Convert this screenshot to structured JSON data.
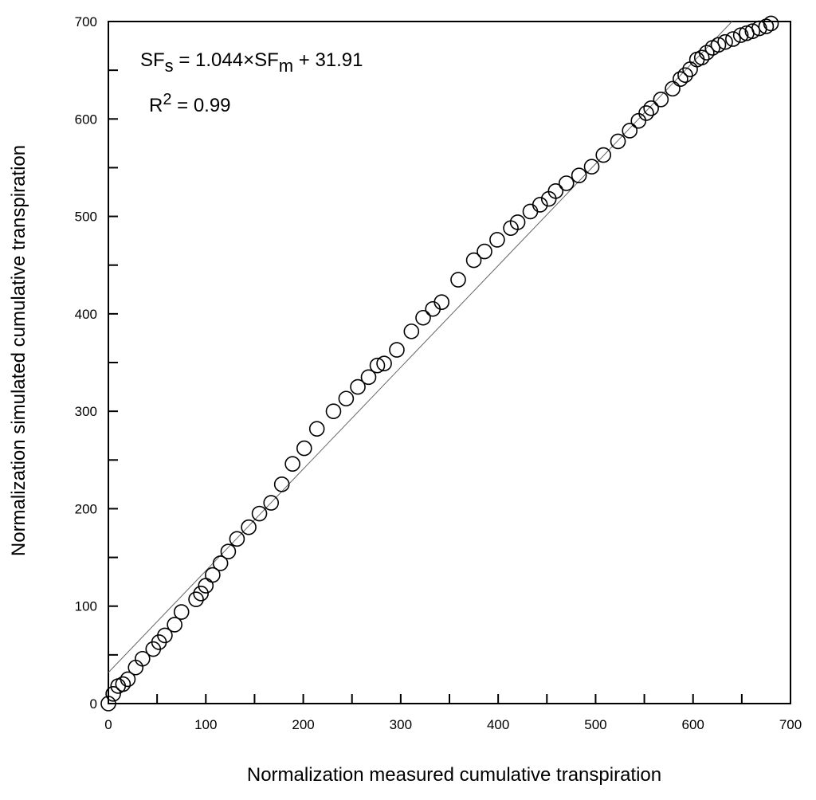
{
  "chart_data": {
    "type": "scatter",
    "xlabel": "Normalization measured cumulative transpiration",
    "ylabel": "Normalization simulated cumulative transpiration",
    "xlim": [
      0,
      700
    ],
    "ylim": [
      0,
      700
    ],
    "xticks": [
      0,
      100,
      200,
      300,
      400,
      500,
      600,
      700
    ],
    "yticks": [
      0,
      100,
      200,
      300,
      400,
      500,
      600,
      700
    ],
    "minor_tick_step": 50,
    "grid": false,
    "marker": "open-circle",
    "fit_line": {
      "slope": 1.044,
      "intercept": 31.91
    },
    "annotations": {
      "equation": {
        "lhs": "SF",
        "lhs_sub": "s",
        "mid": " = 1.044×SF",
        "mid_sub": "m",
        "rhs": " + 31.91"
      },
      "r2": {
        "base": "R",
        "sup": "2",
        "rest": " = 0.99"
      }
    },
    "points": [
      [
        0,
        0
      ],
      [
        5,
        10
      ],
      [
        10,
        18
      ],
      [
        15,
        20
      ],
      [
        20,
        25
      ],
      [
        28,
        37
      ],
      [
        35,
        46
      ],
      [
        46,
        56
      ],
      [
        52,
        63
      ],
      [
        58,
        70
      ],
      [
        68,
        81
      ],
      [
        75,
        94
      ],
      [
        90,
        107
      ],
      [
        95,
        113
      ],
      [
        100,
        121
      ],
      [
        107,
        132
      ],
      [
        115,
        144
      ],
      [
        123,
        156
      ],
      [
        132,
        169
      ],
      [
        144,
        181
      ],
      [
        155,
        195
      ],
      [
        167,
        206
      ],
      [
        178,
        225
      ],
      [
        189,
        246
      ],
      [
        201,
        262
      ],
      [
        214,
        282
      ],
      [
        231,
        300
      ],
      [
        244,
        313
      ],
      [
        256,
        325
      ],
      [
        267,
        335
      ],
      [
        276,
        347
      ],
      [
        283,
        349
      ],
      [
        296,
        363
      ],
      [
        311,
        382
      ],
      [
        323,
        396
      ],
      [
        333,
        405
      ],
      [
        342,
        412
      ],
      [
        359,
        435
      ],
      [
        375,
        455
      ],
      [
        386,
        464
      ],
      [
        399,
        476
      ],
      [
        413,
        488
      ],
      [
        420,
        494
      ],
      [
        433,
        505
      ],
      [
        443,
        512
      ],
      [
        452,
        518
      ],
      [
        459,
        526
      ],
      [
        470,
        534
      ],
      [
        483,
        542
      ],
      [
        496,
        551
      ],
      [
        508,
        563
      ],
      [
        523,
        577
      ],
      [
        535,
        588
      ],
      [
        544,
        598
      ],
      [
        552,
        606
      ],
      [
        557,
        611
      ],
      [
        567,
        620
      ],
      [
        579,
        631
      ],
      [
        587,
        641
      ],
      [
        592,
        645
      ],
      [
        597,
        651
      ],
      [
        604,
        661
      ],
      [
        609,
        663
      ],
      [
        614,
        668
      ],
      [
        620,
        673
      ],
      [
        626,
        676
      ],
      [
        633,
        679
      ],
      [
        641,
        682
      ],
      [
        649,
        686
      ],
      [
        655,
        688
      ],
      [
        661,
        690
      ],
      [
        668,
        693
      ],
      [
        675,
        695
      ],
      [
        680,
        698
      ]
    ]
  }
}
